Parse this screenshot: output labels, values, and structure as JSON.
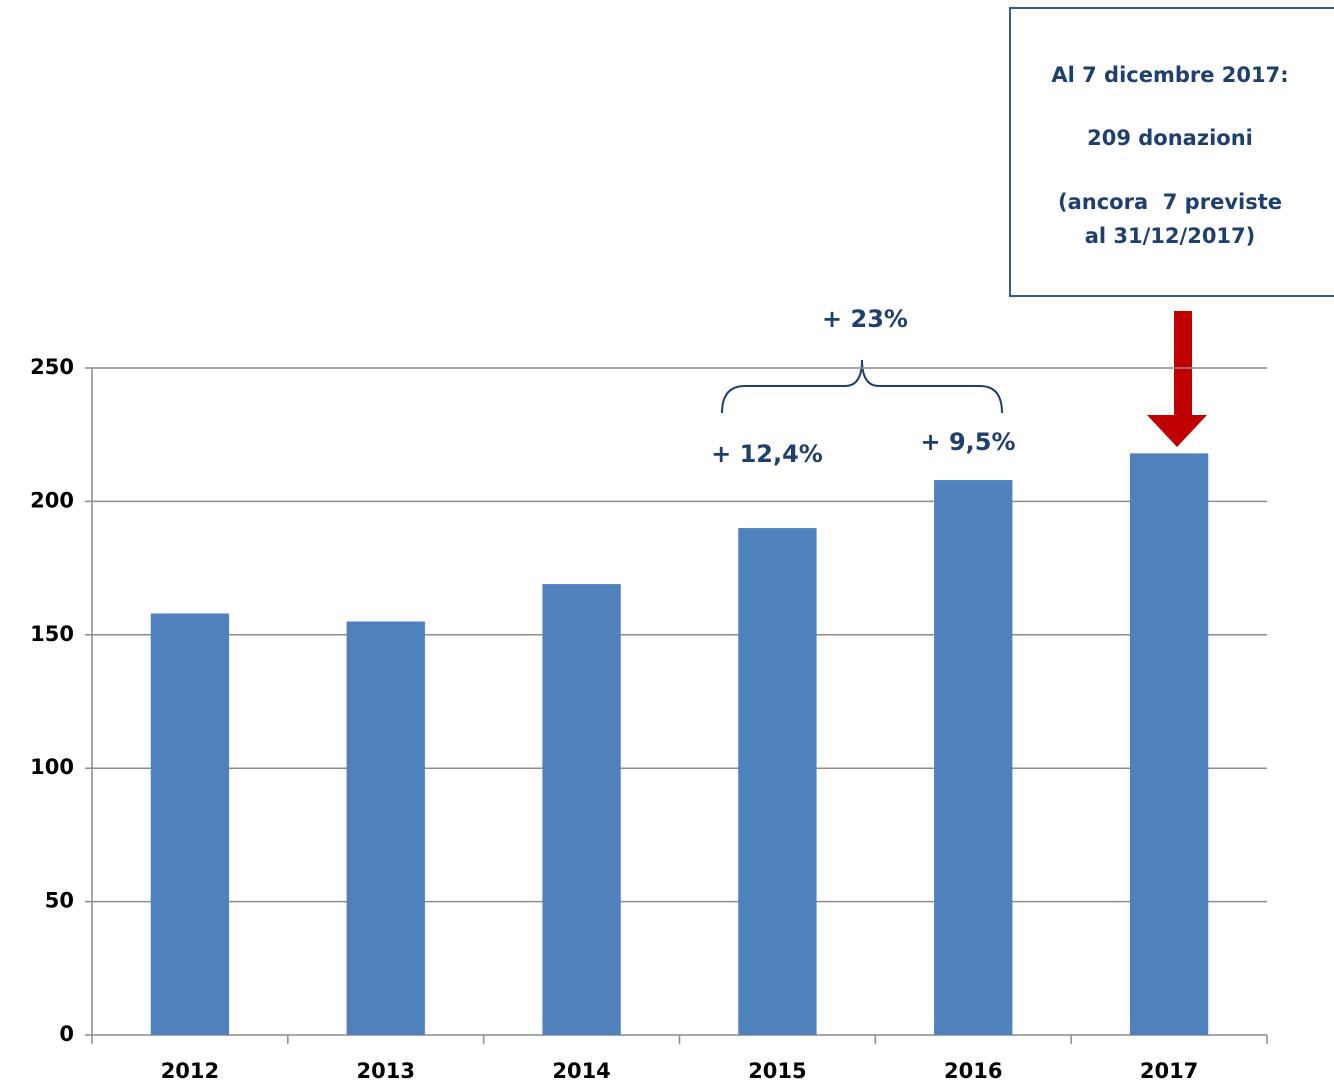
{
  "chart_data": {
    "type": "bar",
    "categories": [
      "2012",
      "2013",
      "2014",
      "2015",
      "2016",
      "2017"
    ],
    "values": [
      158,
      155,
      169,
      190,
      208,
      218
    ],
    "color": "#4f81bd",
    "ylim": [
      0,
      250
    ],
    "yticks": [
      0,
      50,
      100,
      150,
      200,
      250
    ],
    "grid": true,
    "annotations": [
      "+ 23%",
      "+ 12,4%",
      "+ 9,5%"
    ],
    "note": [
      "Al 7 dicembre 2017:",
      "209 donazioni",
      "(ancora  7 previste",
      "al 31/12/2017)"
    ]
  }
}
